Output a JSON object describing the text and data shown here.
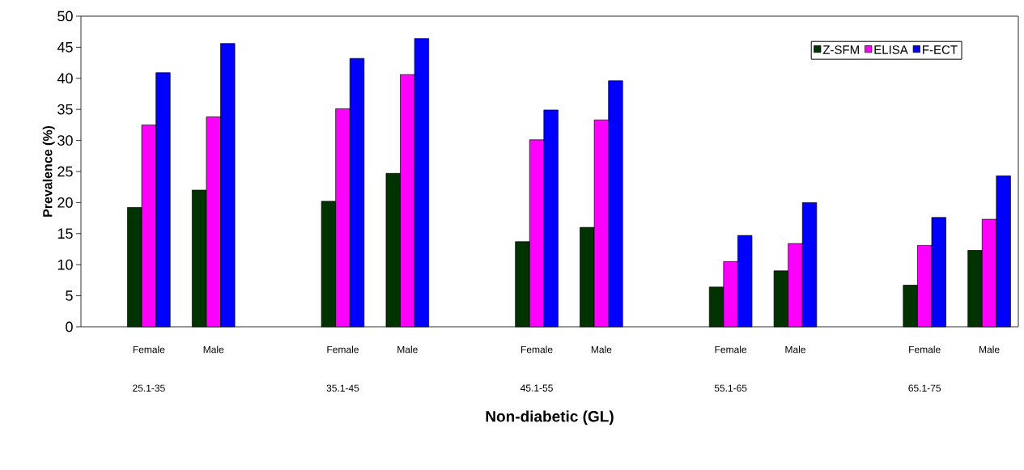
{
  "chart_data": {
    "type": "bar",
    "xlabel": "Non-diabetic (GL)",
    "ylabel": "Prevalence (%)",
    "categories": [
      "Female",
      "Male",
      null,
      "Female",
      "Male",
      null,
      "Female",
      "Male",
      null,
      "Female",
      "Male",
      null,
      "Female",
      "Male"
    ],
    "series": [
      {
        "name": "Z-SFM",
        "color": "#003300",
        "values": [
          19.2,
          22.0,
          null,
          20.2,
          24.7,
          null,
          13.7,
          16.0,
          null,
          6.4,
          9.0,
          null,
          6.7,
          12.3
        ]
      },
      {
        "name": "ELISA",
        "color": "#ff00ff",
        "values": [
          32.5,
          33.8,
          null,
          35.1,
          40.6,
          null,
          30.1,
          33.3,
          null,
          10.5,
          13.4,
          null,
          13.1,
          17.3
        ]
      },
      {
        "name": "F-ECT",
        "color": "#0000ff",
        "values": [
          40.9,
          45.6,
          null,
          43.2,
          46.4,
          null,
          34.9,
          39.6,
          null,
          14.7,
          20.0,
          null,
          17.6,
          24.3
        ]
      }
    ],
    "annotations": [
      "25.1-35",
      "35.1-45",
      "45.1-55",
      "55.1-65",
      "65.1-75"
    ],
    "ylim": [
      0,
      50
    ],
    "yticks": [
      0,
      5,
      10,
      15,
      20,
      25,
      30,
      35,
      40,
      45,
      50
    ],
    "grid": false,
    "legend": "top right"
  }
}
